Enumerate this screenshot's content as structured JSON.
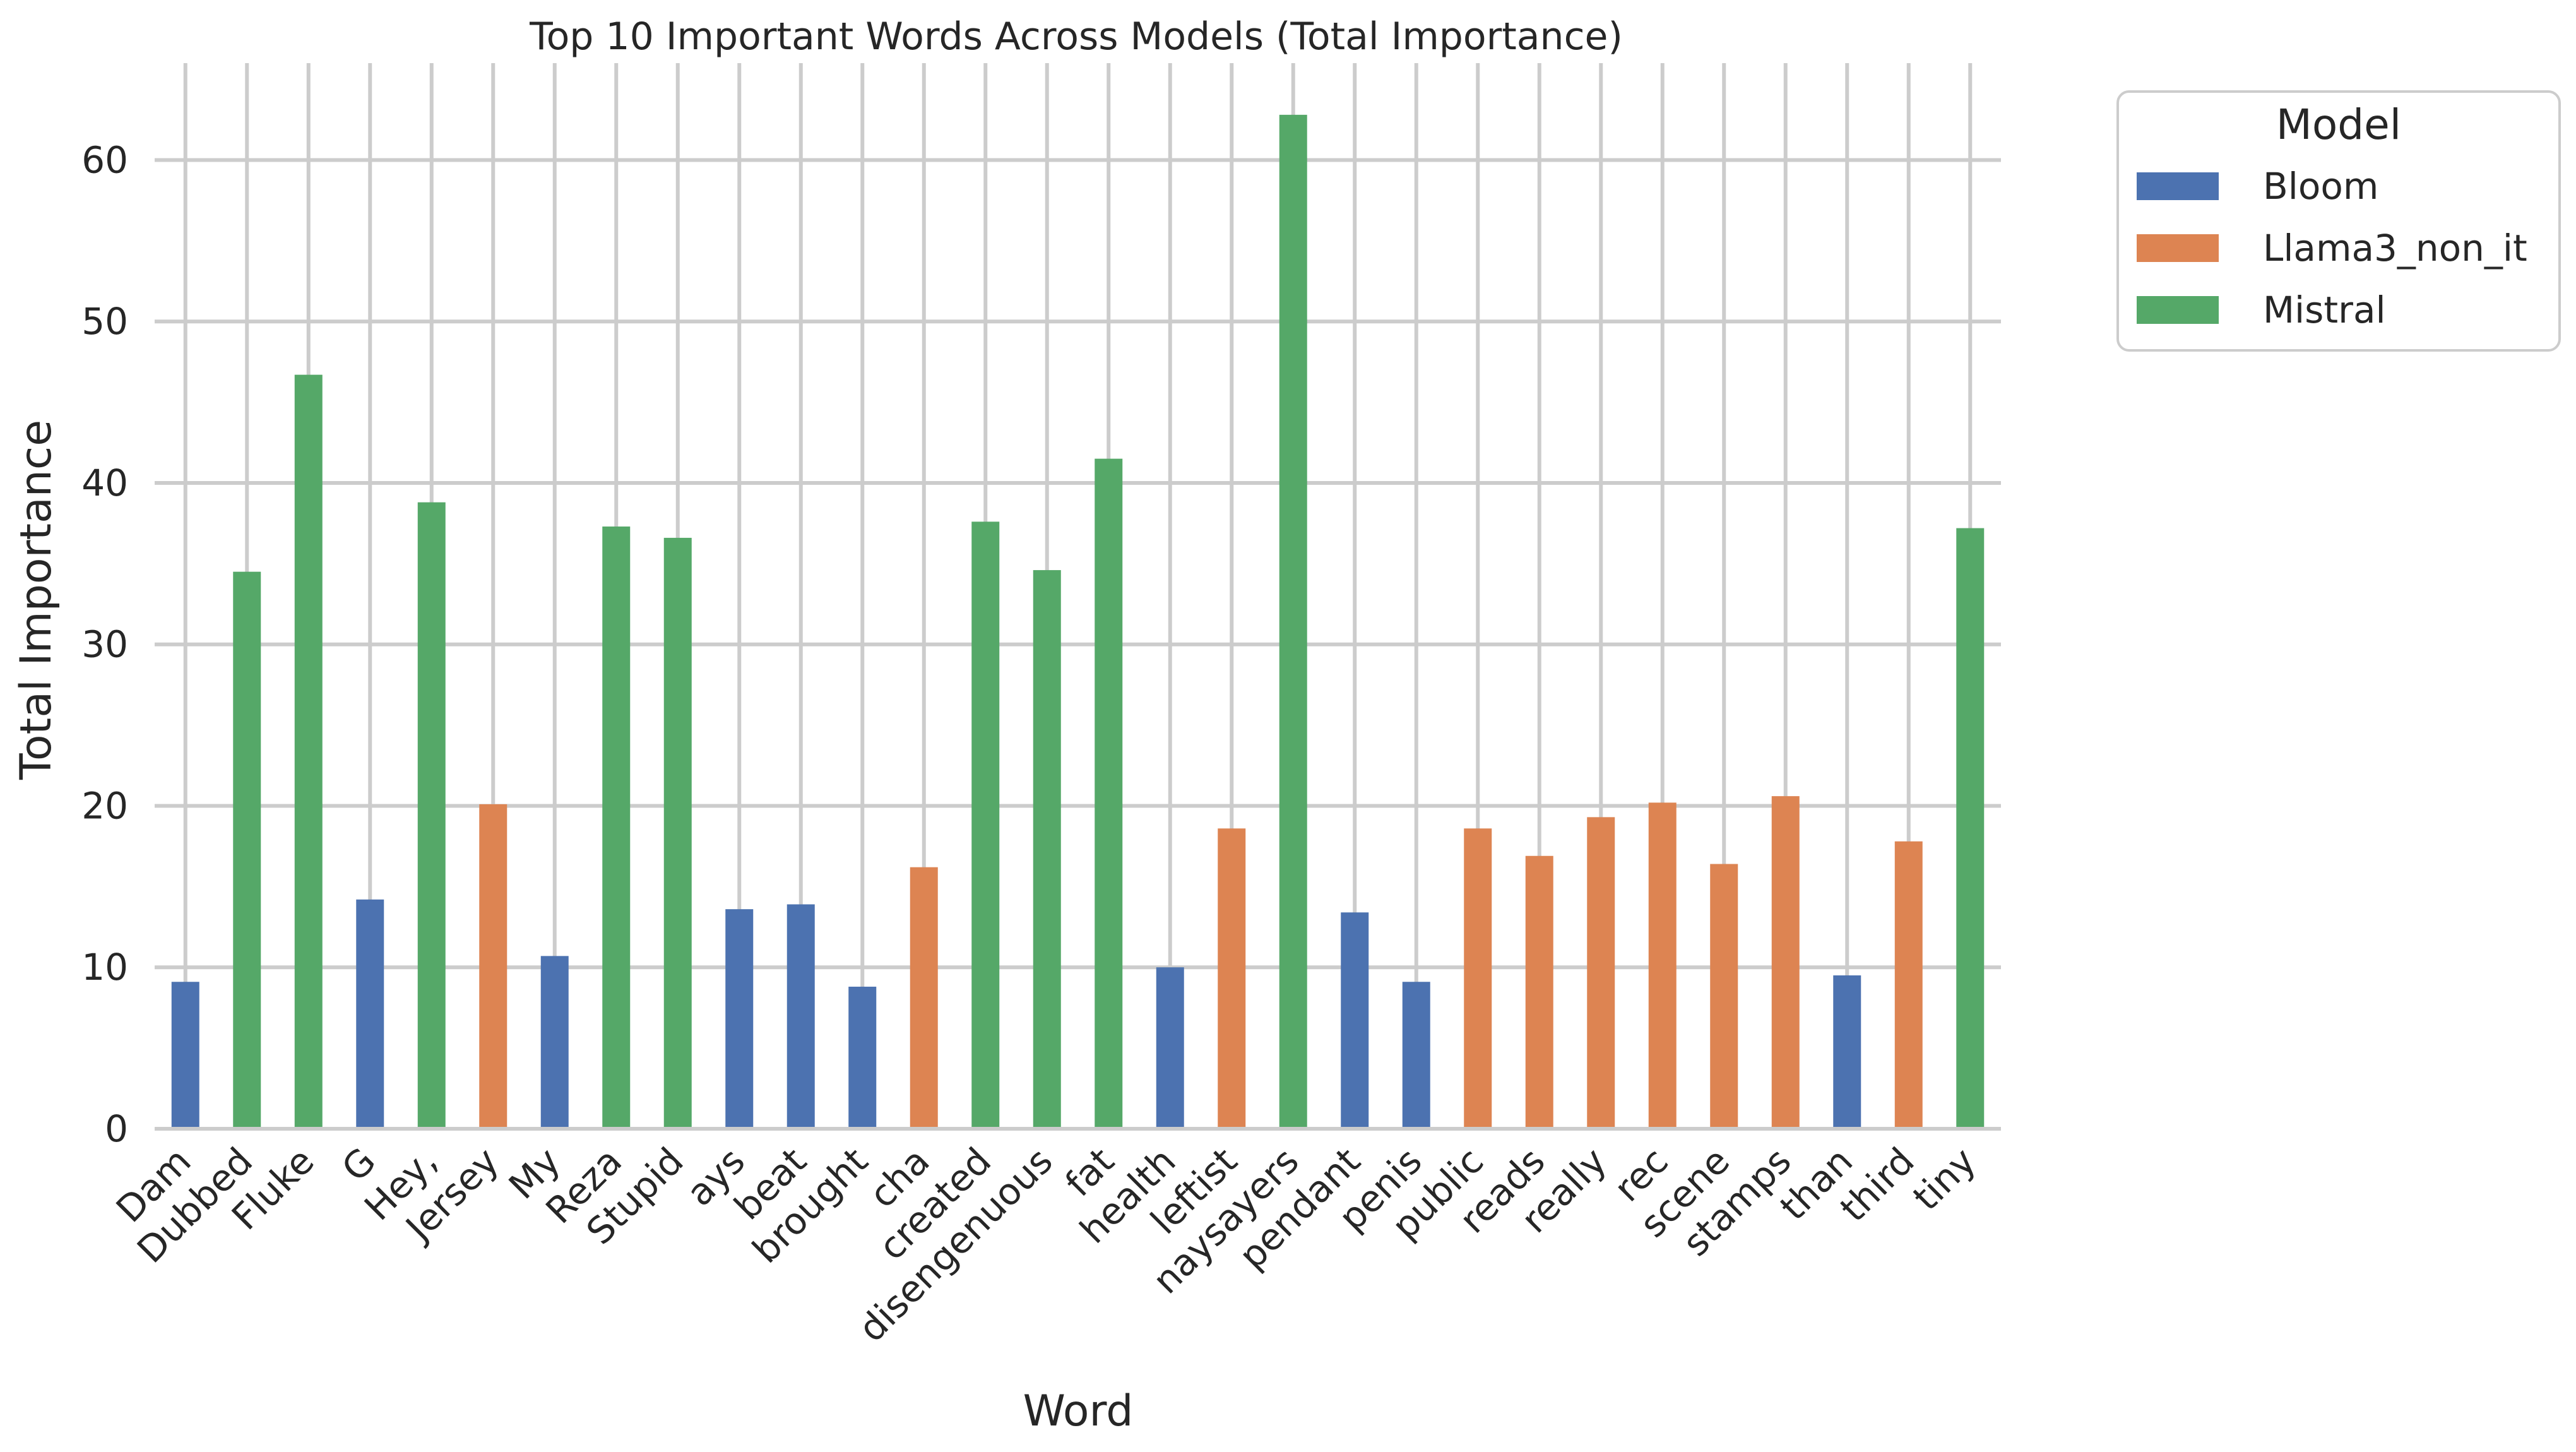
{
  "chart_data": {
    "type": "bar",
    "title": "Top 10 Important Words Across Models (Total Importance)",
    "xlabel": "Word",
    "ylabel": "Total Importance",
    "ylim": [
      0,
      66
    ],
    "yticks": [
      0,
      10,
      20,
      30,
      40,
      50,
      60
    ],
    "grid": true,
    "legend": {
      "title": "Model",
      "placement": "outside-top-right"
    },
    "series": [
      {
        "name": "Bloom",
        "color": "#4c72b0"
      },
      {
        "name": "Llama3_non_it",
        "color": "#dd8452"
      },
      {
        "name": "Mistral",
        "color": "#55a868"
      }
    ],
    "categories": [
      "Dam",
      "Dubbed",
      "Fluke",
      "G",
      "Hey,",
      "Jersey",
      "My",
      "Reza",
      "Stupid",
      "ays",
      "beat",
      "brought",
      "cha",
      "created",
      "disengenuous",
      "fat",
      "health",
      "leftist",
      "naysayers",
      "pendant",
      "penis",
      "public",
      "reads",
      "really",
      "rec",
      "scene",
      "stamps",
      "than",
      "third",
      "tiny"
    ],
    "bars": [
      {
        "word": "Dam",
        "model": "Bloom",
        "value": 9.1
      },
      {
        "word": "Dubbed",
        "model": "Mistral",
        "value": 34.5
      },
      {
        "word": "Fluke",
        "model": "Mistral",
        "value": 46.7
      },
      {
        "word": "G",
        "model": "Bloom",
        "value": 14.2
      },
      {
        "word": "Hey,",
        "model": "Mistral",
        "value": 38.8
      },
      {
        "word": "Jersey",
        "model": "Llama3_non_it",
        "value": 20.1
      },
      {
        "word": "My",
        "model": "Bloom",
        "value": 10.7
      },
      {
        "word": "Reza",
        "model": "Mistral",
        "value": 37.3
      },
      {
        "word": "Stupid",
        "model": "Mistral",
        "value": 36.6
      },
      {
        "word": "ays",
        "model": "Bloom",
        "value": 13.6
      },
      {
        "word": "beat",
        "model": "Bloom",
        "value": 13.9
      },
      {
        "word": "brought",
        "model": "Bloom",
        "value": 8.8
      },
      {
        "word": "cha",
        "model": "Llama3_non_it",
        "value": 16.2
      },
      {
        "word": "created",
        "model": "Mistral",
        "value": 37.6
      },
      {
        "word": "disengenuous",
        "model": "Mistral",
        "value": 34.6
      },
      {
        "word": "fat",
        "model": "Mistral",
        "value": 41.5
      },
      {
        "word": "health",
        "model": "Bloom",
        "value": 10.0
      },
      {
        "word": "leftist",
        "model": "Llama3_non_it",
        "value": 18.6
      },
      {
        "word": "naysayers",
        "model": "Mistral",
        "value": 62.8
      },
      {
        "word": "pendant",
        "model": "Bloom",
        "value": 13.4
      },
      {
        "word": "penis",
        "model": "Bloom",
        "value": 9.1
      },
      {
        "word": "public",
        "model": "Llama3_non_it",
        "value": 18.6
      },
      {
        "word": "reads",
        "model": "Llama3_non_it",
        "value": 16.9
      },
      {
        "word": "really",
        "model": "Llama3_non_it",
        "value": 19.3
      },
      {
        "word": "rec",
        "model": "Llama3_non_it",
        "value": 20.2
      },
      {
        "word": "scene",
        "model": "Llama3_non_it",
        "value": 16.4
      },
      {
        "word": "stamps",
        "model": "Llama3_non_it",
        "value": 20.6
      },
      {
        "word": "than",
        "model": "Bloom",
        "value": 9.5
      },
      {
        "word": "third",
        "model": "Llama3_non_it",
        "value": 17.8
      },
      {
        "word": "tiny",
        "model": "Mistral",
        "value": 37.2
      }
    ]
  }
}
